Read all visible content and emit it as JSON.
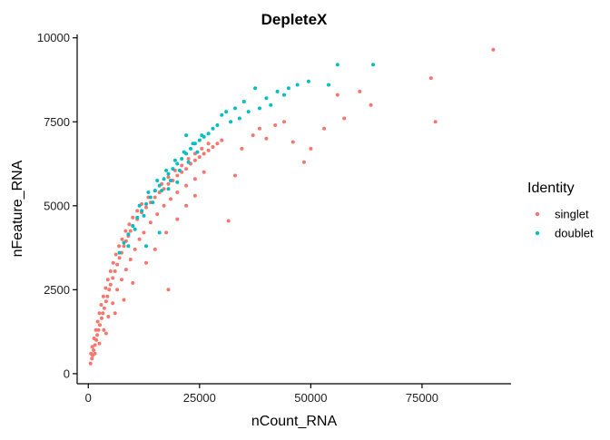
{
  "chart_data": {
    "type": "scatter",
    "title": "DepleteX",
    "xlabel": "nCount_RNA",
    "ylabel": "nFeature_RNA",
    "xlim": [
      -2500,
      95000
    ],
    "ylim": [
      -300,
      10100
    ],
    "x_ticks": [
      0,
      25000,
      50000,
      75000
    ],
    "y_ticks": [
      0,
      2500,
      5000,
      7500,
      10000
    ],
    "x_tick_labels": [
      "0",
      "25000",
      "50000",
      "75000"
    ],
    "y_tick_labels": [
      "0",
      "2500",
      "5000",
      "7500",
      "10000"
    ],
    "grid": false,
    "legend": {
      "title": "Identity",
      "placement": "right"
    },
    "series": [
      {
        "name": "singlet",
        "color": "#F8766D",
        "points": [
          [
            500,
            300
          ],
          [
            800,
            450
          ],
          [
            1000,
            550
          ],
          [
            1200,
            700
          ],
          [
            1500,
            850
          ],
          [
            1800,
            1000
          ],
          [
            2000,
            1150
          ],
          [
            2300,
            1300
          ],
          [
            2600,
            1450
          ],
          [
            3000,
            1650
          ],
          [
            3300,
            1800
          ],
          [
            3600,
            1950
          ],
          [
            4000,
            2150
          ],
          [
            4300,
            2300
          ],
          [
            4700,
            2500
          ],
          [
            5000,
            2650
          ],
          [
            5500,
            2850
          ],
          [
            6000,
            3050
          ],
          [
            6500,
            3250
          ],
          [
            7000,
            3450
          ],
          [
            7500,
            3600
          ],
          [
            8000,
            3800
          ],
          [
            8500,
            3950
          ],
          [
            9000,
            4100
          ],
          [
            9500,
            4250
          ],
          [
            10000,
            4400
          ],
          [
            11000,
            4600
          ],
          [
            12000,
            4800
          ],
          [
            13000,
            4950
          ],
          [
            14000,
            5100
          ],
          [
            15000,
            5250
          ],
          [
            16000,
            5400
          ],
          [
            17000,
            5500
          ],
          [
            18000,
            5650
          ],
          [
            19000,
            5750
          ],
          [
            20000,
            5900
          ],
          [
            21000,
            6000
          ],
          [
            22000,
            6100
          ],
          [
            23000,
            6250
          ],
          [
            24000,
            6350
          ],
          [
            25000,
            6450
          ],
          [
            26000,
            6550
          ],
          [
            27000,
            6650
          ],
          [
            28000,
            6750
          ],
          [
            29000,
            6850
          ],
          [
            30000,
            6950
          ],
          [
            600,
            600
          ],
          [
            900,
            800
          ],
          [
            1300,
            1050
          ],
          [
            1700,
            1300
          ],
          [
            2100,
            1550
          ],
          [
            2500,
            1800
          ],
          [
            2900,
            2050
          ],
          [
            3400,
            2300
          ],
          [
            3900,
            2550
          ],
          [
            4400,
            2800
          ],
          [
            5000,
            3050
          ],
          [
            5600,
            3300
          ],
          [
            6200,
            3550
          ],
          [
            6900,
            3800
          ],
          [
            7600,
            4000
          ],
          [
            8400,
            4250
          ],
          [
            9200,
            4450
          ],
          [
            10000,
            4650
          ],
          [
            11000,
            4850
          ],
          [
            12000,
            5050
          ],
          [
            13500,
            5250
          ],
          [
            15000,
            5450
          ],
          [
            16500,
            5650
          ],
          [
            18000,
            5850
          ],
          [
            19500,
            6050
          ],
          [
            21000,
            6200
          ],
          [
            22500,
            6400
          ],
          [
            24000,
            6550
          ],
          [
            25500,
            6700
          ],
          [
            27000,
            6850
          ],
          [
            1500,
            600
          ],
          [
            2500,
            900
          ],
          [
            3500,
            1300
          ],
          [
            4500,
            1700
          ],
          [
            5500,
            2100
          ],
          [
            6500,
            2500
          ],
          [
            7500,
            2800
          ],
          [
            8500,
            3100
          ],
          [
            9500,
            3400
          ],
          [
            10500,
            3700
          ],
          [
            11500,
            4000
          ],
          [
            12500,
            4200
          ],
          [
            14000,
            4500
          ],
          [
            15500,
            4750
          ],
          [
            17000,
            5000
          ],
          [
            18500,
            5200
          ],
          [
            20000,
            5400
          ],
          [
            22000,
            5600
          ],
          [
            24000,
            5800
          ],
          [
            26000,
            6000
          ],
          [
            4000,
            1200
          ],
          [
            6000,
            1800
          ],
          [
            8000,
            2200
          ],
          [
            10000,
            2700
          ],
          [
            13000,
            3300
          ],
          [
            15000,
            3700
          ],
          [
            17500,
            4200
          ],
          [
            20000,
            4600
          ],
          [
            22000,
            5000
          ],
          [
            24000,
            5300
          ],
          [
            18000,
            2500
          ],
          [
            31500,
            4550
          ],
          [
            33000,
            5900
          ],
          [
            34500,
            6700
          ],
          [
            37000,
            7100
          ],
          [
            38500,
            7300
          ],
          [
            40000,
            7000
          ],
          [
            42000,
            7400
          ],
          [
            44000,
            7500
          ],
          [
            46000,
            6900
          ],
          [
            48500,
            6300
          ],
          [
            50000,
            6700
          ],
          [
            53000,
            7300
          ],
          [
            56000,
            8300
          ],
          [
            57500,
            7600
          ],
          [
            61000,
            8400
          ],
          [
            63500,
            8000
          ],
          [
            78000,
            7500
          ],
          [
            77000,
            8800
          ],
          [
            91000,
            9650
          ]
        ]
      },
      {
        "name": "doublet",
        "color": "#00BFC4",
        "points": [
          [
            7000,
            3600
          ],
          [
            8000,
            3900
          ],
          [
            9000,
            4150
          ],
          [
            10000,
            4400
          ],
          [
            11000,
            4650
          ],
          [
            12000,
            4850
          ],
          [
            13000,
            5050
          ],
          [
            14000,
            5250
          ],
          [
            15000,
            5450
          ],
          [
            16000,
            5600
          ],
          [
            17000,
            5800
          ],
          [
            18000,
            5950
          ],
          [
            19000,
            6100
          ],
          [
            20000,
            6250
          ],
          [
            21000,
            6400
          ],
          [
            22000,
            6550
          ],
          [
            23000,
            6700
          ],
          [
            24000,
            6850
          ],
          [
            25000,
            6950
          ],
          [
            26000,
            7050
          ],
          [
            27000,
            7150
          ],
          [
            28000,
            7300
          ],
          [
            29000,
            7400
          ],
          [
            11500,
            5000
          ],
          [
            13500,
            5400
          ],
          [
            15500,
            5750
          ],
          [
            17500,
            6050
          ],
          [
            19500,
            6350
          ],
          [
            21500,
            6600
          ],
          [
            23500,
            6850
          ],
          [
            25500,
            7100
          ],
          [
            10500,
            4300
          ],
          [
            12500,
            4700
          ],
          [
            14500,
            5100
          ],
          [
            16500,
            5450
          ],
          [
            18500,
            5750
          ],
          [
            20500,
            6050
          ],
          [
            22500,
            6300
          ],
          [
            24500,
            6600
          ],
          [
            9000,
            3800
          ],
          [
            13000,
            3800
          ],
          [
            16000,
            4200
          ],
          [
            18000,
            5500
          ],
          [
            20000,
            5700
          ],
          [
            22000,
            7100
          ],
          [
            30000,
            7700
          ],
          [
            31000,
            7800
          ],
          [
            32000,
            7500
          ],
          [
            33000,
            7900
          ],
          [
            34000,
            7600
          ],
          [
            35000,
            8100
          ],
          [
            36000,
            7800
          ],
          [
            37500,
            8500
          ],
          [
            38500,
            7900
          ],
          [
            40000,
            8200
          ],
          [
            41000,
            8000
          ],
          [
            42500,
            8400
          ],
          [
            44000,
            8300
          ],
          [
            45000,
            8500
          ],
          [
            47000,
            8600
          ],
          [
            49500,
            8700
          ],
          [
            54000,
            8600
          ],
          [
            56000,
            9200
          ],
          [
            64000,
            9200
          ]
        ]
      }
    ]
  }
}
